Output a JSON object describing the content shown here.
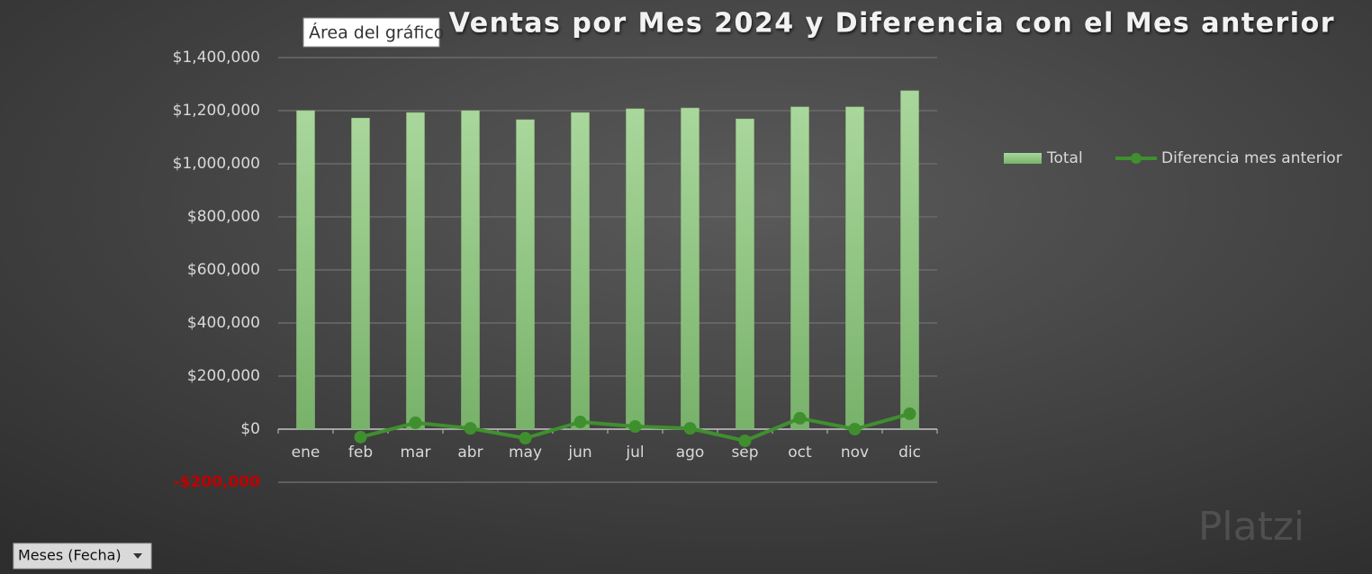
{
  "chart_data": {
    "type": "bar-line",
    "title": "Ventas por Mes 2024 y Diferencia con el Mes anterior",
    "categories": [
      "ene",
      "feb",
      "mar",
      "abr",
      "may",
      "jun",
      "jul",
      "ago",
      "sep",
      "oct",
      "nov",
      "dic"
    ],
    "series": [
      {
        "name": "Total",
        "type": "bar",
        "color": "#93c47d",
        "values": [
          1200000,
          1172000,
          1193000,
          1200000,
          1166000,
          1193000,
          1207000,
          1210000,
          1169000,
          1214000,
          1214000,
          1275000
        ]
      },
      {
        "name": "Diferencia mes anterior",
        "type": "line",
        "color": "#3f8f2f",
        "values": [
          null,
          -30000,
          24000,
          3000,
          -34000,
          27000,
          10000,
          3000,
          -44000,
          41000,
          0,
          58000
        ]
      }
    ],
    "ylim": [
      -200000,
      1400000
    ],
    "yticks": [
      {
        "value": -200000,
        "label": "-$200,000"
      },
      {
        "value": 0,
        "label": "$0"
      },
      {
        "value": 200000,
        "label": "$200,000"
      },
      {
        "value": 400000,
        "label": "$400,000"
      },
      {
        "value": 600000,
        "label": "$600,000"
      },
      {
        "value": 800000,
        "label": "$800,000"
      },
      {
        "value": 1000000,
        "label": "$1,000,000"
      },
      {
        "value": 1200000,
        "label": "$1,200,000"
      },
      {
        "value": 1400000,
        "label": "$1,400,000"
      }
    ],
    "negative_tick_color": "#c00000",
    "grid": true,
    "legend": "right"
  },
  "tooltip": "Área del gráfico",
  "field_button": "Meses (Fecha)",
  "watermark": "Platzi"
}
